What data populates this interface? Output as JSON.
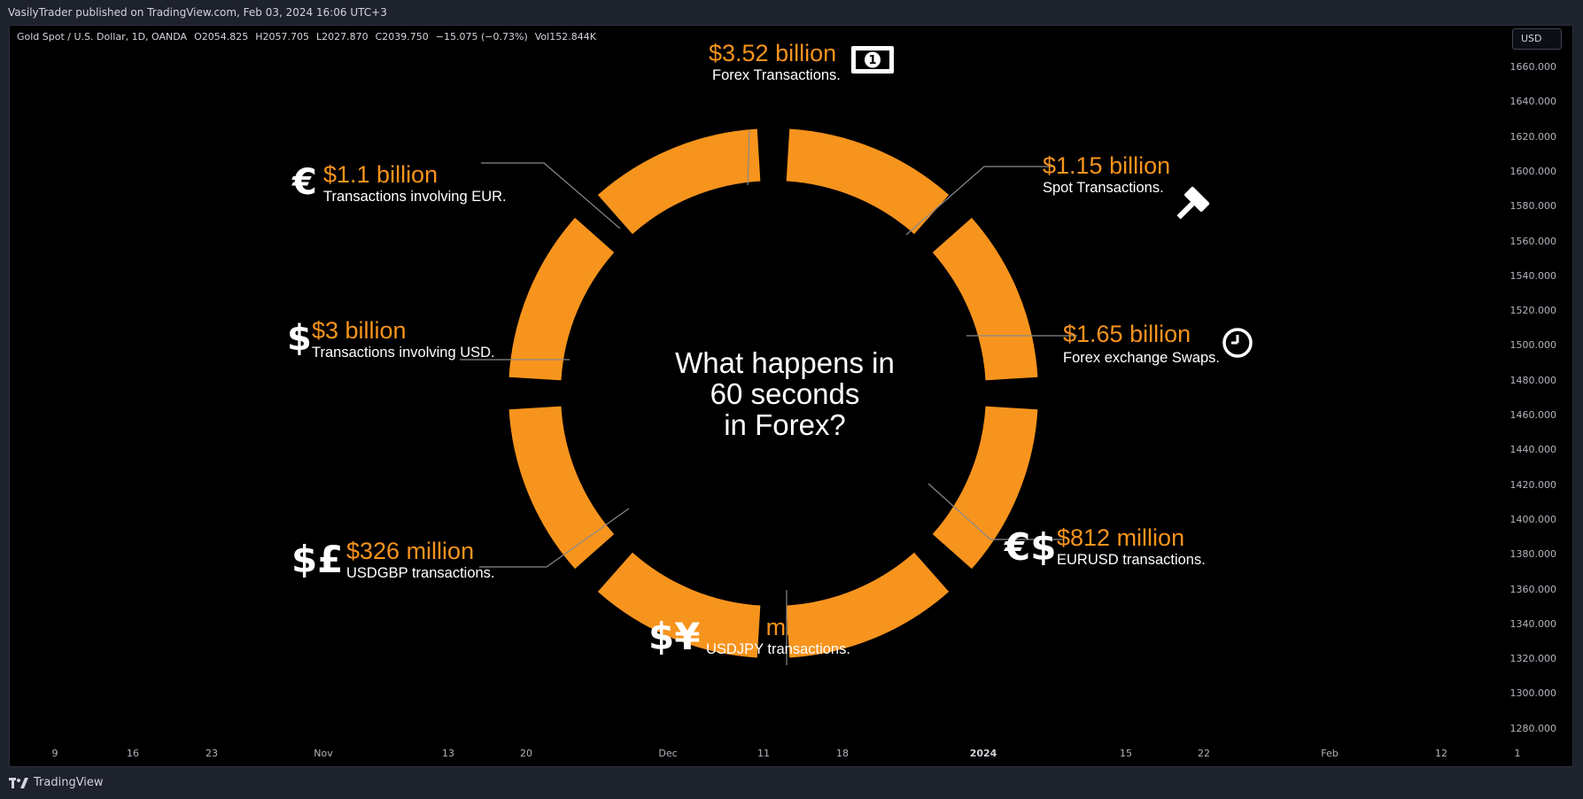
{
  "header": {
    "publish_line": "VasilyTrader published on TradingView.com, Feb 03, 2024 16:06 UTC+3"
  },
  "legend": {
    "symbol": "Gold Spot / U.S. Dollar, 1D, OANDA",
    "open": "O2054.825",
    "high": "H2057.705",
    "low": "L2027.870",
    "close": "C2039.750",
    "change": "−15.075 (−0.73%)",
    "volume": "Vol152.844K"
  },
  "currency_selector": "USD",
  "price_axis": [
    "1660.000",
    "1640.000",
    "1620.000",
    "1600.000",
    "1580.000",
    "1560.000",
    "1540.000",
    "1520.000",
    "1500.000",
    "1480.000",
    "1460.000",
    "1440.000",
    "1420.000",
    "1400.000",
    "1380.000",
    "1360.000",
    "1340.000",
    "1320.000",
    "1300.000",
    "1280.000"
  ],
  "time_axis": [
    {
      "label": "9",
      "bold": false
    },
    {
      "label": "16",
      "bold": false
    },
    {
      "label": "23",
      "bold": false
    },
    {
      "label": "Nov",
      "bold": false
    },
    {
      "label": "13",
      "bold": false
    },
    {
      "label": "20",
      "bold": false
    },
    {
      "label": "Dec",
      "bold": false
    },
    {
      "label": "11",
      "bold": false
    },
    {
      "label": "18",
      "bold": false
    },
    {
      "label": "2024",
      "bold": true
    },
    {
      "label": "15",
      "bold": false
    },
    {
      "label": "22",
      "bold": false
    },
    {
      "label": "Feb",
      "bold": false
    },
    {
      "label": "12",
      "bold": false
    },
    {
      "label": "1",
      "bold": false
    }
  ],
  "infographic": {
    "title_lines": [
      "What happens in",
      "60 seconds",
      "in Forex?"
    ],
    "accent_color": "#f7941d",
    "callouts": {
      "forex": {
        "amount": "$3.52 billion",
        "desc": "Forex Transactions.",
        "icon": "banknote-icon"
      },
      "spot": {
        "amount": "$1.15 billion",
        "desc": "Spot Transactions.",
        "icon": "gavel-icon"
      },
      "swaps": {
        "amount": "$1.65 billion",
        "desc": "Forex exchange Swaps.",
        "icon": "clock-icon"
      },
      "eurusd": {
        "amount": "$812 million",
        "desc": "EURUSD transactions.",
        "icon": "euro-dollar-icon"
      },
      "usdjpy": {
        "amount": "$632 million",
        "desc": "USDJPY transactions.",
        "icon": "dollar-yen-icon"
      },
      "usdgbp": {
        "amount": "$326 million",
        "desc": "USDGBP transactions.",
        "icon": "dollar-pound-icon"
      },
      "usd": {
        "amount": "$3 billion",
        "desc": "Transactions involving USD.",
        "icon": "dollar-icon"
      },
      "eur": {
        "amount": "$1.1 billion",
        "desc": "Transactions involving EUR.",
        "icon": "euro-icon"
      }
    },
    "icon_glyphs": {
      "euro": "€",
      "dollar": "$",
      "dollar_pound": "$£",
      "dollar_yen": "$¥",
      "euro_dollar": "€$",
      "banknote_digit": "1"
    }
  },
  "footer": {
    "brand": "TradingView"
  }
}
